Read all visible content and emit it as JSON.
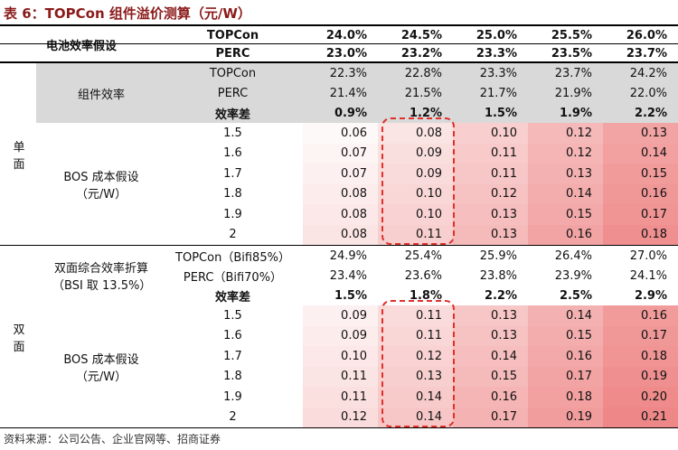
{
  "title": "表 6：TOPCon 组件溢价测算（元/W）",
  "header": {
    "label": "电池效率假设",
    "rows": [
      {
        "name": "TOPCon",
        "values": [
          "24.0%",
          "24.5%",
          "25.0%",
          "25.5%",
          "26.0%"
        ]
      },
      {
        "name": "PERC",
        "values": [
          "23.0%",
          "23.2%",
          "23.3%",
          "23.5%",
          "23.7%"
        ]
      }
    ]
  },
  "sections": [
    {
      "side": "单面",
      "efficiency": {
        "label": "组件效率",
        "rows": [
          {
            "name": "TOPCon",
            "values": [
              "22.3%",
              "22.8%",
              "23.3%",
              "23.7%",
              "24.2%"
            ]
          },
          {
            "name": "PERC",
            "values": [
              "21.4%",
              "21.5%",
              "21.7%",
              "21.9%",
              "22.0%"
            ]
          },
          {
            "name": "效率差",
            "values": [
              "0.9%",
              "1.2%",
              "1.5%",
              "1.9%",
              "2.2%"
            ]
          }
        ]
      },
      "bos": {
        "label": "BOS 成本假设（元/W）",
        "rows": [
          {
            "name": "1.5",
            "values": [
              "0.06",
              "0.08",
              "0.10",
              "0.12",
              "0.13"
            ]
          },
          {
            "name": "1.6",
            "values": [
              "0.07",
              "0.09",
              "0.11",
              "0.12",
              "0.14"
            ]
          },
          {
            "name": "1.7",
            "values": [
              "0.07",
              "0.09",
              "0.11",
              "0.13",
              "0.15"
            ]
          },
          {
            "name": "1.8",
            "values": [
              "0.08",
              "0.10",
              "0.12",
              "0.14",
              "0.16"
            ]
          },
          {
            "name": "1.9",
            "values": [
              "0.08",
              "0.10",
              "0.13",
              "0.15",
              "0.17"
            ]
          },
          {
            "name": "2",
            "values": [
              "0.08",
              "0.11",
              "0.13",
              "0.16",
              "0.18"
            ]
          }
        ]
      }
    },
    {
      "side": "双面",
      "efficiency": {
        "label": "双面综合效率折算（BSI 取 13.5%）",
        "rows": [
          {
            "name": "TOPCon（Bifi85%）",
            "values": [
              "24.9%",
              "25.4%",
              "25.9%",
              "26.4%",
              "27.0%"
            ]
          },
          {
            "name": "PERC（Bifi70%）",
            "values": [
              "23.4%",
              "23.6%",
              "23.8%",
              "23.9%",
              "24.1%"
            ]
          },
          {
            "name": "效率差",
            "values": [
              "1.5%",
              "1.8%",
              "2.2%",
              "2.5%",
              "2.9%"
            ]
          }
        ]
      },
      "bos": {
        "label": "BOS 成本假设（元/W）",
        "rows": [
          {
            "name": "1.5",
            "values": [
              "0.09",
              "0.11",
              "0.13",
              "0.14",
              "0.16"
            ]
          },
          {
            "name": "1.6",
            "values": [
              "0.09",
              "0.11",
              "0.13",
              "0.15",
              "0.17"
            ]
          },
          {
            "name": "1.7",
            "values": [
              "0.10",
              "0.12",
              "0.14",
              "0.16",
              "0.18"
            ]
          },
          {
            "name": "1.8",
            "values": [
              "0.11",
              "0.13",
              "0.15",
              "0.17",
              "0.19"
            ]
          },
          {
            "name": "1.9",
            "values": [
              "0.11",
              "0.14",
              "0.16",
              "0.18",
              "0.20"
            ]
          },
          {
            "name": "2",
            "values": [
              "0.12",
              "0.14",
              "0.17",
              "0.19",
              "0.21"
            ]
          }
        ]
      }
    }
  ],
  "source": "资料来源：公司公告、企业官网等、招商证券"
}
